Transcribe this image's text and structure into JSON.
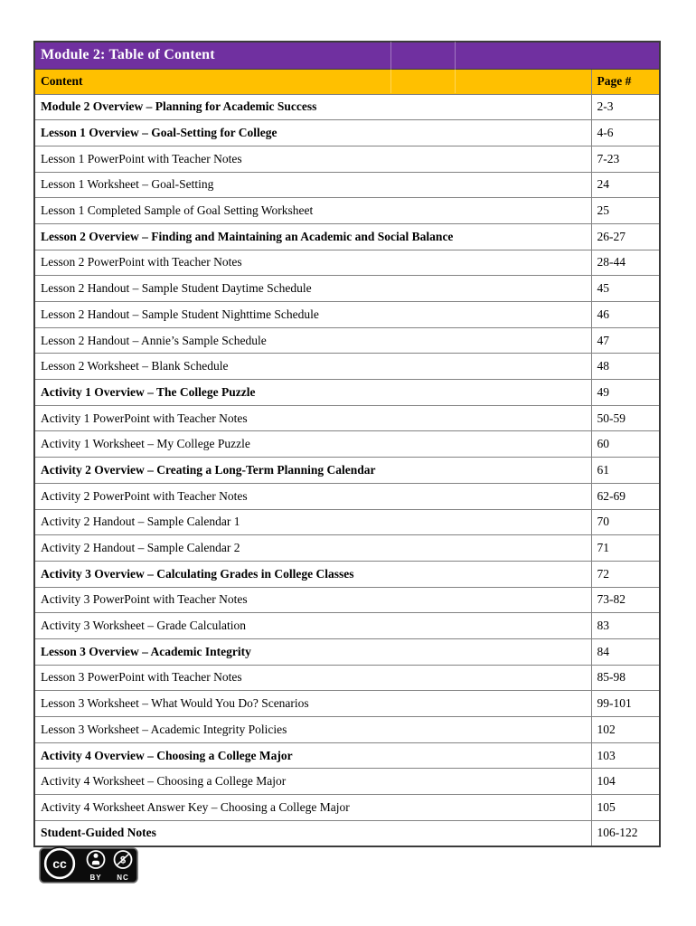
{
  "theme": {
    "page_bg": "#ffffff",
    "title_bg": "#7030A0",
    "title_text": "#ffffff",
    "header_bg": "#FFC000",
    "header_text": "#000000",
    "body_text": "#000000",
    "border_dark": "#3b3b3b",
    "border_light": "#828282",
    "badge_bg": "#0c0c0c"
  },
  "table": {
    "title": "Module 2: Table of Content",
    "columns": {
      "content": "Content",
      "page": "Page #"
    },
    "rows": [
      {
        "content": "Module 2 Overview – Planning for Academic Success",
        "page": "2-3",
        "bold": true
      },
      {
        "content": "Lesson 1 Overview – Goal-Setting for College",
        "page": "4-6",
        "bold": true
      },
      {
        "content": "Lesson 1 PowerPoint with Teacher Notes",
        "page": "7-23",
        "bold": false
      },
      {
        "content": "Lesson 1 Worksheet – Goal-Setting",
        "page": "24",
        "bold": false
      },
      {
        "content": "Lesson 1 Completed Sample of Goal Setting Worksheet",
        "page": "25",
        "bold": false
      },
      {
        "content": "Lesson 2 Overview – Finding and Maintaining an Academic and Social Balance",
        "page": "26-27",
        "bold": true
      },
      {
        "content": "Lesson 2 PowerPoint with Teacher Notes",
        "page": "28-44",
        "bold": false
      },
      {
        "content": "Lesson 2 Handout – Sample Student Daytime Schedule",
        "page": "45",
        "bold": false
      },
      {
        "content": "Lesson 2 Handout – Sample Student Nighttime Schedule",
        "page": "46",
        "bold": false
      },
      {
        "content": "Lesson 2 Handout – Annie’s Sample Schedule",
        "page": "47",
        "bold": false
      },
      {
        "content": "Lesson 2 Worksheet – Blank Schedule",
        "page": "48",
        "bold": false
      },
      {
        "content": "Activity 1 Overview – The College Puzzle",
        "page": "49",
        "bold": true
      },
      {
        "content": "Activity 1 PowerPoint with Teacher Notes",
        "page": "50-59",
        "bold": false
      },
      {
        "content": "Activity 1 Worksheet – My College Puzzle",
        "page": "60",
        "bold": false
      },
      {
        "content": "Activity 2 Overview – Creating a Long-Term Planning Calendar",
        "page": "61",
        "bold": true
      },
      {
        "content": "Activity 2 PowerPoint with Teacher Notes",
        "page": "62-69",
        "bold": false
      },
      {
        "content": "Activity 2 Handout – Sample Calendar 1",
        "page": "70",
        "bold": false
      },
      {
        "content": "Activity 2 Handout – Sample Calendar 2",
        "page": "71",
        "bold": false
      },
      {
        "content": "Activity 3 Overview – Calculating Grades in College Classes",
        "page": "72",
        "bold": true
      },
      {
        "content": "Activity 3 PowerPoint with Teacher Notes",
        "page": "73-82",
        "bold": false
      },
      {
        "content": "Activity 3 Worksheet – Grade Calculation",
        "page": "83",
        "bold": false
      },
      {
        "content": "Lesson 3 Overview – Academic Integrity",
        "page": "84",
        "bold": true
      },
      {
        "content": "Lesson 3 PowerPoint with Teacher Notes",
        "page": "85-98",
        "bold": false
      },
      {
        "content": "Lesson 3 Worksheet – What Would You Do? Scenarios",
        "page": "99-101",
        "bold": false
      },
      {
        "content": "Lesson 3 Worksheet – Academic Integrity Policies",
        "page": "102",
        "bold": false
      },
      {
        "content": "Activity 4 Overview – Choosing a College Major",
        "page": "103",
        "bold": true
      },
      {
        "content": "Activity 4 Worksheet – Choosing a College Major",
        "page": "104",
        "bold": false
      },
      {
        "content": "Activity 4 Worksheet Answer Key – Choosing a College Major",
        "page": "105",
        "bold": false
      },
      {
        "content": "Student-Guided Notes",
        "page": "106-122",
        "bold": true
      }
    ]
  },
  "license_badge": {
    "cc_letters": "cc",
    "nc_glyph": "$",
    "by_label": "BY",
    "nc_label": "NC"
  }
}
